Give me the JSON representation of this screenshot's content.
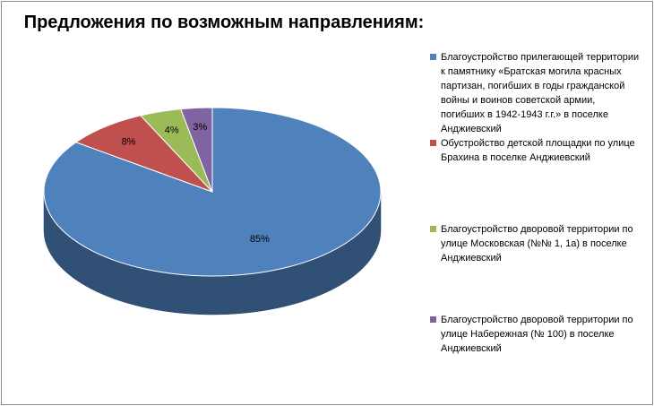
{
  "chart_data": {
    "type": "pie",
    "title": "Предложения по возможным направлениям:",
    "slices": [
      {
        "label": "Благоустройство прилегающей территории к памятнику «Братская могила красных партизан, погибших в годы гражданской войны и воинов советской армии, погибших в 1942-1943 г.г.» в поселке Анджиевский",
        "value": 85,
        "data_label": "85%",
        "color": "#4f81bd"
      },
      {
        "label": "Обустройство детской площадки по улице Брахина в поселке Анджиевский",
        "value": 8,
        "data_label": "8%",
        "color": "#c0504d"
      },
      {
        "label": "Благоустройство дворовой территории по улице Московская (№№ 1, 1а) в поселке Анджиевский",
        "value": 4,
        "data_label": "4%",
        "color": "#9bbb59"
      },
      {
        "label": "Благоустройство дворовой территории по улице Набережная (№ 100) в поселке Анджиевский",
        "value": 3,
        "data_label": "3%",
        "color": "#8064a2"
      }
    ],
    "legend_position": "right"
  }
}
